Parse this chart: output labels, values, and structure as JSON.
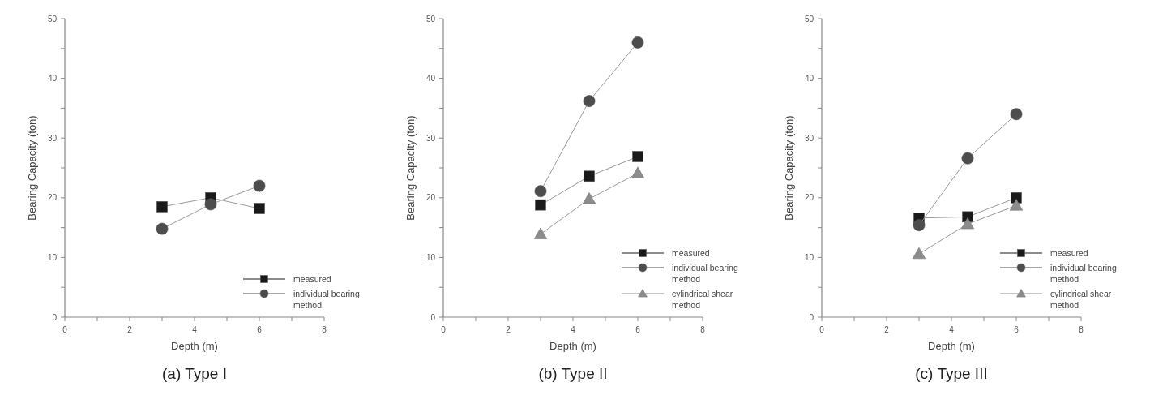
{
  "chart_data": [
    {
      "type": "line",
      "title": "(a)  Type I",
      "xlabel": "Depth (m)",
      "ylabel": "Bearing Capacity (ton)",
      "x": [
        3,
        4.5,
        6
      ],
      "xlim": [
        0,
        8
      ],
      "ylim": [
        0,
        50
      ],
      "xticks": [
        0,
        {
          "value": 1,
          "label": null
        },
        2,
        {
          "value": 3,
          "label": null
        },
        4,
        {
          "value": 5,
          "label": null
        },
        6,
        {
          "value": 7,
          "label": null
        },
        8
      ],
      "yticks": [
        0,
        {
          "value": 5,
          "label": null
        },
        10,
        {
          "value": 15,
          "label": null
        },
        20,
        {
          "value": 25,
          "label": null
        },
        30,
        {
          "value": 35,
          "label": null
        },
        40,
        {
          "value": 45,
          "label": null
        },
        50
      ],
      "grid": false,
      "legend": "bottom right",
      "series": [
        {
          "name": "measured",
          "color": "#1a1a1a",
          "marker": "square",
          "values": [
            18.5,
            20,
            18.2
          ]
        },
        {
          "name": "individual bearing method",
          "color": "#4d4d4d",
          "marker": "circle",
          "values": [
            14.8,
            18.9,
            22
          ]
        }
      ]
    },
    {
      "type": "line",
      "title": "(b)  Type II",
      "xlabel": "Depth (m)",
      "ylabel": "Bearing Capacity (ton)",
      "x": [
        3,
        4.5,
        6
      ],
      "xlim": [
        0,
        8
      ],
      "ylim": [
        0,
        50
      ],
      "xticks": [
        0,
        {
          "value": 1,
          "label": null
        },
        2,
        {
          "value": 3,
          "label": null
        },
        4,
        {
          "value": 5,
          "label": null
        },
        6,
        {
          "value": 7,
          "label": null
        },
        8
      ],
      "yticks": [
        0,
        {
          "value": 5,
          "label": null
        },
        10,
        {
          "value": 15,
          "label": null
        },
        20,
        {
          "value": 25,
          "label": null
        },
        30,
        {
          "value": 35,
          "label": null
        },
        40,
        {
          "value": 45,
          "label": null
        },
        50
      ],
      "grid": false,
      "legend": "bottom right",
      "series": [
        {
          "name": "measured",
          "color": "#1a1a1a",
          "marker": "square",
          "values": [
            18.8,
            23.6,
            26.9
          ]
        },
        {
          "name": "individual bearing method",
          "color": "#4d4d4d",
          "marker": "circle",
          "values": [
            21.1,
            36.2,
            46
          ]
        },
        {
          "name": "cylindrical shear method",
          "color": "#8c8c8c",
          "marker": "triangle",
          "values": [
            13.9,
            19.8,
            24.1
          ]
        }
      ]
    },
    {
      "type": "line",
      "title": "(c)  Type III",
      "xlabel": "Depth (m)",
      "ylabel": "Bearing Capacity (ton)",
      "x": [
        3,
        4.5,
        6
      ],
      "xlim": [
        0,
        8
      ],
      "ylim": [
        0,
        50
      ],
      "xticks": [
        0,
        {
          "value": 1,
          "label": null
        },
        2,
        {
          "value": 3,
          "label": null
        },
        4,
        {
          "value": 5,
          "label": null
        },
        6,
        {
          "value": 7,
          "label": null
        },
        8
      ],
      "yticks": [
        0,
        {
          "value": 5,
          "label": null
        },
        10,
        {
          "value": 15,
          "label": null
        },
        20,
        {
          "value": 25,
          "label": null
        },
        30,
        {
          "value": 35,
          "label": null
        },
        40,
        {
          "value": 45,
          "label": null
        },
        50
      ],
      "grid": false,
      "legend": "bottom right",
      "series": [
        {
          "name": "measured",
          "color": "#1a1a1a",
          "marker": "square",
          "values": [
            16.6,
            16.8,
            20
          ]
        },
        {
          "name": "individual bearing method",
          "color": "#4d4d4d",
          "marker": "circle",
          "values": [
            15.4,
            26.6,
            34
          ]
        },
        {
          "name": "cylindrical shear method",
          "color": "#8c8c8c",
          "marker": "triangle",
          "values": [
            10.6,
            15.6,
            18.7
          ]
        }
      ]
    }
  ]
}
